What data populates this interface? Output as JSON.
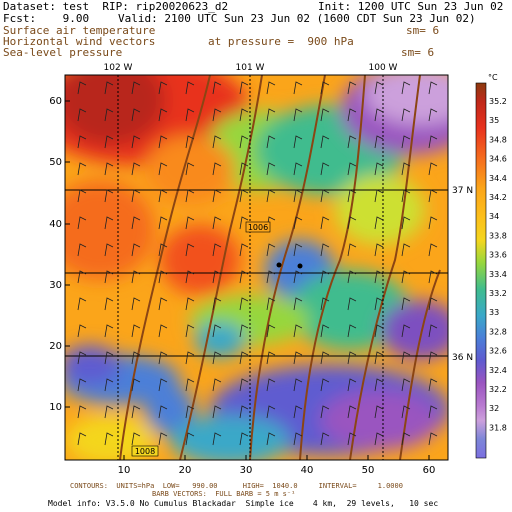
{
  "header": {
    "dataset": "Dataset: test  RIP: rip20020623_d2",
    "init": "Init: 1200 UTC Sun 23 Jun 02",
    "fcst": "Fcst:    9.00",
    "valid": "Valid: 2100 UTC Sun 23 Jun 02 (1600 CDT Sun 23 Jun 02)",
    "field1": "Surface air temperature",
    "field1_sm": "sm= 6",
    "field2": "Horizontal wind vectors",
    "field2_pressure": "at pressure =  900 hPa",
    "field3": "Sea-level pressure",
    "field3_sm": "sm= 6"
  },
  "map": {
    "top_lon_labels": [
      "102 W",
      "101 W",
      "100 W"
    ],
    "right_lat_labels": [
      "37 N",
      "36 N"
    ],
    "y_ticks": [
      "60",
      "50",
      "40",
      "30",
      "20",
      "10"
    ],
    "x_ticks": [
      "10",
      "20",
      "30",
      "40",
      "50",
      "60"
    ],
    "contour_labels": [
      "1006",
      "1008"
    ]
  },
  "colorbar": {
    "unit": "°C",
    "labels": [
      "35.2",
      "35",
      "34.8",
      "34.6",
      "34.4",
      "34.2",
      "34",
      "33.8",
      "33.6",
      "33.4",
      "33.2",
      "33",
      "32.8",
      "32.6",
      "32.4",
      "32.2",
      "32",
      "31.8"
    ],
    "colors": [
      "#8b3a0e",
      "#c0281a",
      "#e8321e",
      "#f2511f",
      "#f56c1e",
      "#f98a1c",
      "#fba51a",
      "#fcc01c",
      "#f4d61f",
      "#cde032",
      "#96d73e",
      "#5ec85a",
      "#3fbc8e",
      "#3aa8c8",
      "#4b7fd8",
      "#5f5bd0",
      "#7d4fc0",
      "#9a55c0",
      "#b87ad0",
      "#cca0dc",
      "#7d86d8",
      "#7b6fe0"
    ]
  },
  "footer": {
    "line1": "CONTOURS:  UNITS=hPa  LOW=   990.00      HIGH=  1040.0     INTERVAL=     1.0000",
    "line2": "BARB VECTORS:  FULL BARB = 5 m s⁻¹",
    "line3": "Model info: V3.5.0 No Cumulus Blackadar  Simple ice    4 km,  29 levels,   10 sec"
  }
}
